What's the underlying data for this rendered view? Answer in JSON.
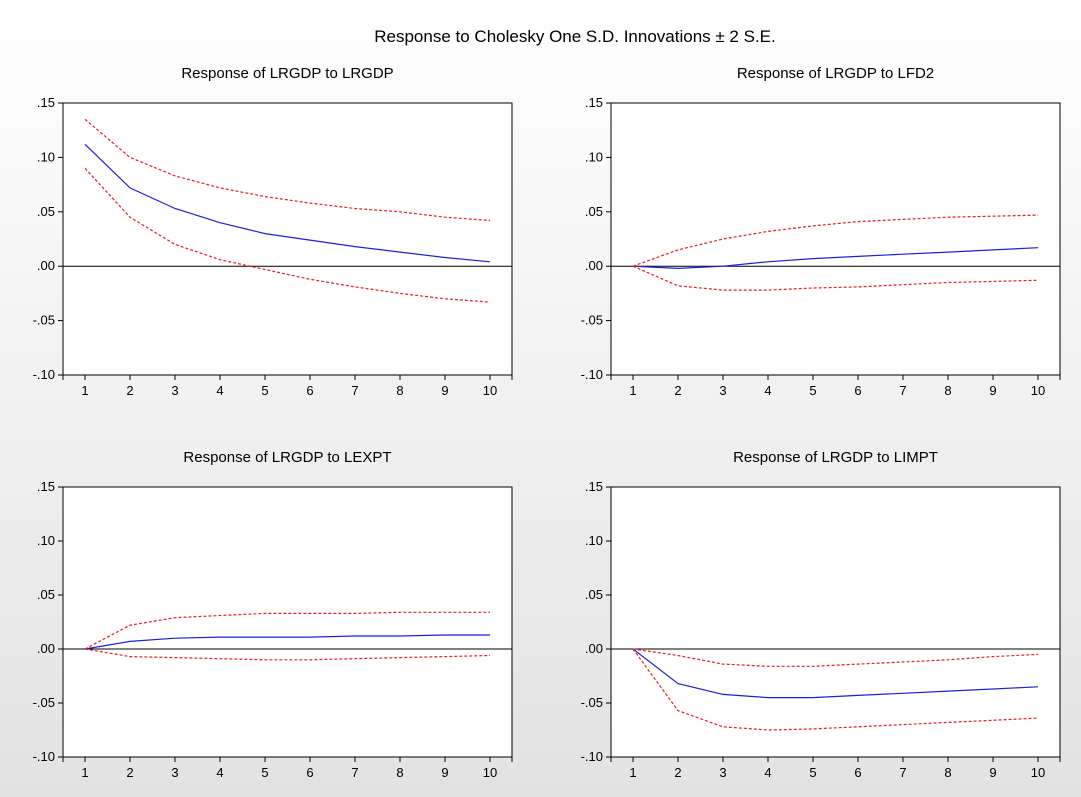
{
  "figure": {
    "title": "Response to Cholesky One S.D. Innovations ± 2 S.E."
  },
  "colors": {
    "response": "#1f1fd6",
    "bands": "#e02020",
    "axis": "#000000",
    "zero_line": "#000000"
  },
  "chart_data": [
    {
      "type": "line",
      "title": "Response of LRGDP to LRGDP",
      "xlabel": "",
      "ylabel": "",
      "grid": false,
      "x": [
        1,
        2,
        3,
        4,
        5,
        6,
        7,
        8,
        9,
        10
      ],
      "xticks": [
        "1",
        "2",
        "3",
        "4",
        "5",
        "6",
        "7",
        "8",
        "9",
        "10"
      ],
      "ylim": [
        -0.1,
        0.15
      ],
      "yticks": [
        ".15",
        ".10",
        ".05",
        ".00",
        "-.05",
        "-.10"
      ],
      "yticks_values": [
        0.15,
        0.1,
        0.05,
        0.0,
        -0.05,
        -0.1
      ],
      "series": [
        {
          "role": "response",
          "values": [
            0.112,
            0.072,
            0.053,
            0.04,
            0.03,
            0.024,
            0.018,
            0.013,
            0.008,
            0.004
          ]
        },
        {
          "role": "upper",
          "values": [
            0.135,
            0.1,
            0.083,
            0.072,
            0.064,
            0.058,
            0.053,
            0.05,
            0.045,
            0.042
          ]
        },
        {
          "role": "lower",
          "values": [
            0.09,
            0.045,
            0.02,
            0.006,
            -0.003,
            -0.012,
            -0.019,
            -0.025,
            -0.03,
            -0.033
          ]
        }
      ]
    },
    {
      "type": "line",
      "title": "Response of LRGDP to LFD2",
      "xlabel": "",
      "ylabel": "",
      "grid": false,
      "x": [
        1,
        2,
        3,
        4,
        5,
        6,
        7,
        8,
        9,
        10
      ],
      "xticks": [
        "1",
        "2",
        "3",
        "4",
        "5",
        "6",
        "7",
        "8",
        "9",
        "10"
      ],
      "ylim": [
        -0.1,
        0.15
      ],
      "yticks": [
        ".15",
        ".10",
        ".05",
        ".00",
        "-.05",
        "-.10"
      ],
      "yticks_values": [
        0.15,
        0.1,
        0.05,
        0.0,
        -0.05,
        -0.1
      ],
      "series": [
        {
          "role": "response",
          "values": [
            0.0,
            -0.002,
            0.0,
            0.004,
            0.007,
            0.009,
            0.011,
            0.013,
            0.015,
            0.017
          ]
        },
        {
          "role": "upper",
          "values": [
            0.0,
            0.015,
            0.025,
            0.032,
            0.037,
            0.041,
            0.043,
            0.045,
            0.046,
            0.047
          ]
        },
        {
          "role": "lower",
          "values": [
            0.0,
            -0.018,
            -0.022,
            -0.022,
            -0.02,
            -0.019,
            -0.017,
            -0.015,
            -0.014,
            -0.013
          ]
        }
      ]
    },
    {
      "type": "line",
      "title": "Response of LRGDP to LEXPT",
      "xlabel": "",
      "ylabel": "",
      "grid": false,
      "x": [
        1,
        2,
        3,
        4,
        5,
        6,
        7,
        8,
        9,
        10
      ],
      "xticks": [
        "1",
        "2",
        "3",
        "4",
        "5",
        "6",
        "7",
        "8",
        "9",
        "10"
      ],
      "ylim": [
        -0.1,
        0.15
      ],
      "yticks": [
        ".15",
        ".10",
        ".05",
        ".00",
        "-.05",
        "-.10"
      ],
      "yticks_values": [
        0.15,
        0.1,
        0.05,
        0.0,
        -0.05,
        -0.1
      ],
      "series": [
        {
          "role": "response",
          "values": [
            0.0,
            0.007,
            0.01,
            0.011,
            0.011,
            0.011,
            0.012,
            0.012,
            0.013,
            0.013
          ]
        },
        {
          "role": "upper",
          "values": [
            0.0,
            0.022,
            0.029,
            0.031,
            0.033,
            0.033,
            0.033,
            0.034,
            0.034,
            0.034
          ]
        },
        {
          "role": "lower",
          "values": [
            0.0,
            -0.007,
            -0.008,
            -0.009,
            -0.01,
            -0.01,
            -0.009,
            -0.008,
            -0.007,
            -0.006
          ]
        }
      ]
    },
    {
      "type": "line",
      "title": "Response of LRGDP to LIMPT",
      "xlabel": "",
      "ylabel": "",
      "grid": false,
      "x": [
        1,
        2,
        3,
        4,
        5,
        6,
        7,
        8,
        9,
        10
      ],
      "xticks": [
        "1",
        "2",
        "3",
        "4",
        "5",
        "6",
        "7",
        "8",
        "9",
        "10"
      ],
      "ylim": [
        -0.1,
        0.15
      ],
      "yticks": [
        ".15",
        ".10",
        ".05",
        ".00",
        "-.05",
        "-.10"
      ],
      "yticks_values": [
        0.15,
        0.1,
        0.05,
        0.0,
        -0.05,
        -0.1
      ],
      "series": [
        {
          "role": "response",
          "values": [
            0.0,
            -0.032,
            -0.042,
            -0.045,
            -0.045,
            -0.043,
            -0.041,
            -0.039,
            -0.037,
            -0.035
          ]
        },
        {
          "role": "upper",
          "values": [
            0.0,
            -0.006,
            -0.014,
            -0.016,
            -0.016,
            -0.014,
            -0.012,
            -0.01,
            -0.007,
            -0.005
          ]
        },
        {
          "role": "lower",
          "values": [
            0.0,
            -0.057,
            -0.072,
            -0.075,
            -0.074,
            -0.072,
            -0.07,
            -0.068,
            -0.066,
            -0.064
          ]
        }
      ]
    }
  ]
}
